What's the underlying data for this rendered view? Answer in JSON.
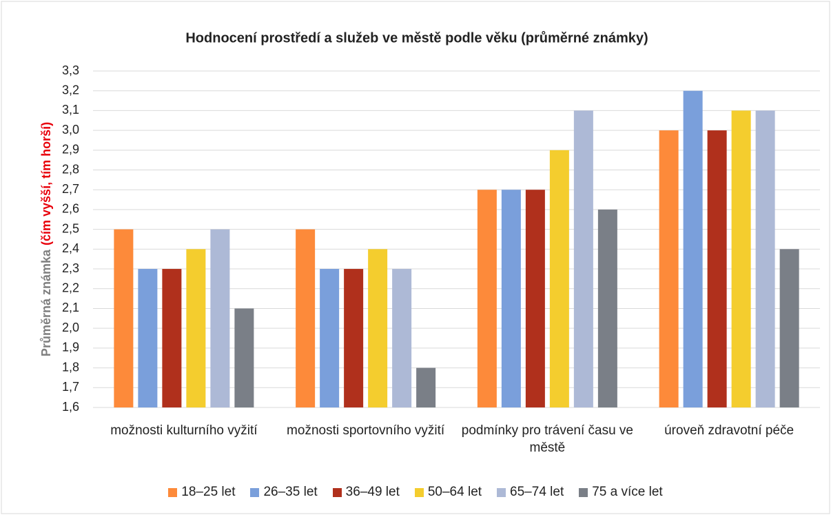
{
  "chart_data": {
    "type": "bar",
    "title": "Hodnocení prostředí a služeb ve městě podle věku (průměrné známky)",
    "y_label": "Průměrná známka",
    "y_label_note": "(čím vyšší, tím horší)",
    "categories": [
      "možnosti kulturního vyžití",
      "možnosti sportovního vyžití",
      "podmínky pro trávení času ve městě",
      "úroveň zdravotní péče"
    ],
    "series": [
      {
        "name": "18–25 let",
        "color": "#fd8a3a",
        "values": [
          2.5,
          2.5,
          2.7,
          3.0
        ]
      },
      {
        "name": "26–35 let",
        "color": "#7a9fdb",
        "values": [
          2.3,
          2.3,
          2.7,
          3.2
        ]
      },
      {
        "name": "36–49 let",
        "color": "#b0301c",
        "values": [
          2.3,
          2.3,
          2.7,
          3.0
        ]
      },
      {
        "name": "50–64 let",
        "color": "#f4cd2e",
        "values": [
          2.4,
          2.4,
          2.9,
          3.1
        ]
      },
      {
        "name": "65–74 let",
        "color": "#adb9d6",
        "values": [
          2.5,
          2.3,
          3.1,
          3.1
        ]
      },
      {
        "name": "75 a více let",
        "color": "#7a7f87",
        "values": [
          2.1,
          1.8,
          2.6,
          2.4
        ]
      }
    ],
    "ylim": [
      1.6,
      3.3
    ],
    "yticks": [
      {
        "value": 1.6,
        "label": "1,6"
      },
      {
        "value": 1.7,
        "label": "1,7"
      },
      {
        "value": 1.8,
        "label": "1,8"
      },
      {
        "value": 1.9,
        "label": "1,9"
      },
      {
        "value": 2.0,
        "label": "2,0"
      },
      {
        "value": 2.1,
        "label": "2,1"
      },
      {
        "value": 2.2,
        "label": "2,2"
      },
      {
        "value": 2.3,
        "label": "2,3"
      },
      {
        "value": 2.4,
        "label": "2,4"
      },
      {
        "value": 2.5,
        "label": "2,5"
      },
      {
        "value": 2.6,
        "label": "2,6"
      },
      {
        "value": 2.7,
        "label": "2,7"
      },
      {
        "value": 2.8,
        "label": "2,8"
      },
      {
        "value": 2.9,
        "label": "2,9"
      },
      {
        "value": 3.0,
        "label": "3,0"
      },
      {
        "value": 3.1,
        "label": "3,1"
      },
      {
        "value": 3.2,
        "label": "3,2"
      },
      {
        "value": 3.3,
        "label": "3,3"
      }
    ],
    "grid": true,
    "legend": "bottom"
  }
}
